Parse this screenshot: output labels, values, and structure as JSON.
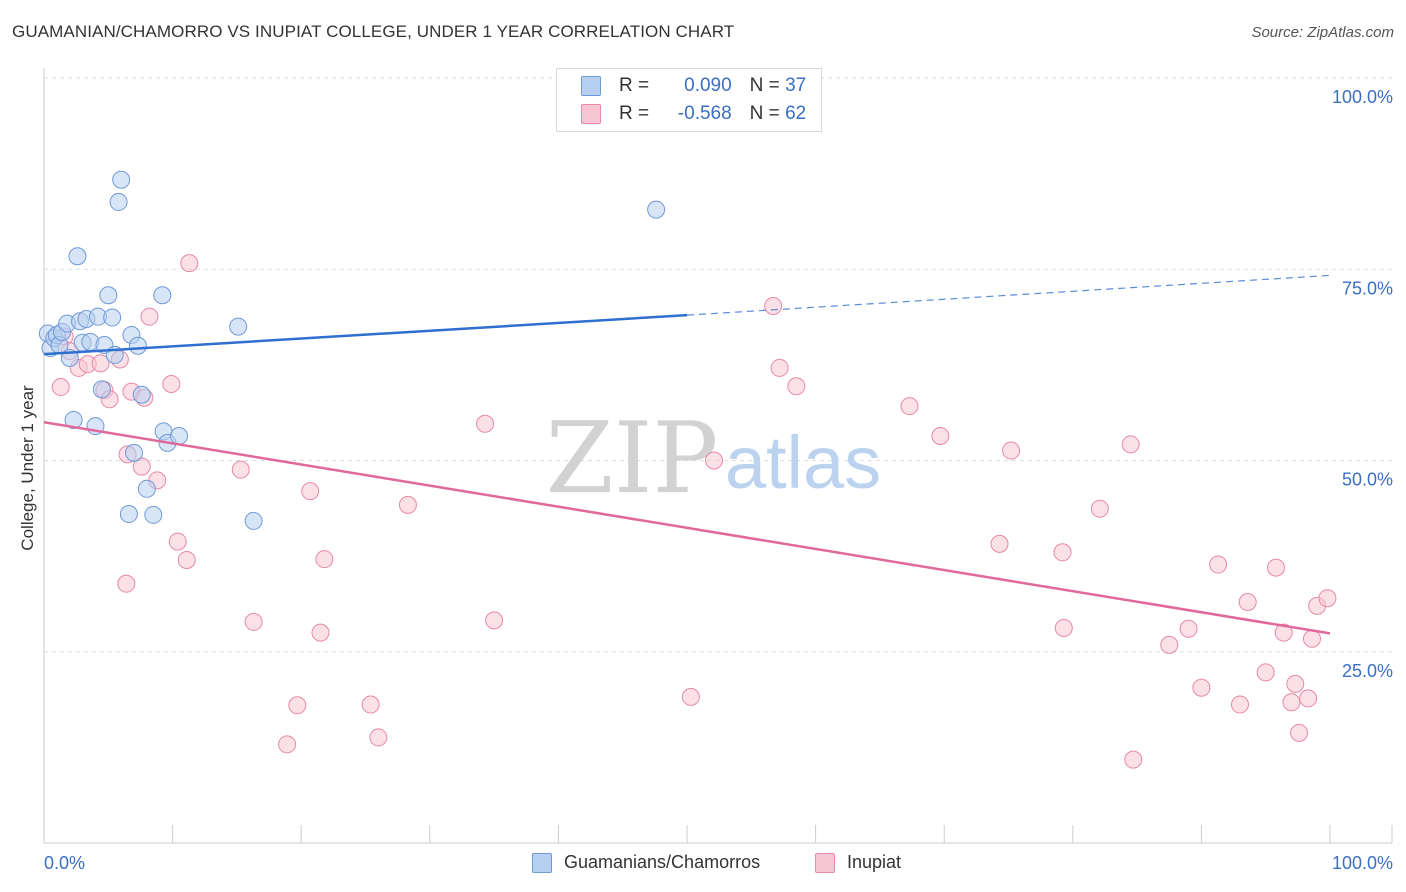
{
  "header": {
    "title": "GUAMANIAN/CHAMORRO VS INUPIAT COLLEGE, UNDER 1 YEAR CORRELATION CHART",
    "source": "Source: ZipAtlas.com"
  },
  "watermark": {
    "zip": "ZIP",
    "atlas": "atlas"
  },
  "legend": {
    "rows": [
      {
        "r_label": "R =",
        "r_value": "0.090",
        "n_label": "N =",
        "n_value": "37"
      },
      {
        "r_label": "R =",
        "r_value": "-0.568",
        "n_label": "N =",
        "n_value": "62"
      }
    ]
  },
  "colors": {
    "blue_fill": "#b7d0f1",
    "blue_stroke": "#6f9ad8",
    "blue_line": "#2f6fcf",
    "pink_fill": "#f7c6d4",
    "pink_stroke": "#e68aa6",
    "pink_line": "#e0689a",
    "grid": "#dddddd",
    "tick_label": "#3a6fc4"
  },
  "chart_data": {
    "type": "scatter",
    "title": "GUAMANIAN/CHAMORRO VS INUPIAT COLLEGE, UNDER 1 YEAR CORRELATION CHART",
    "xlabel": "",
    "ylabel": "College, Under 1 year",
    "xlim": [
      0,
      100
    ],
    "ylim": [
      0,
      100
    ],
    "x_ticks": [
      "0.0%",
      "100.0%"
    ],
    "y_ticks": [
      {
        "value": 25,
        "label": "25.0%"
      },
      {
        "value": 50,
        "label": "50.0%"
      },
      {
        "value": 75,
        "label": "75.0%"
      },
      {
        "value": 100,
        "label": "100.0%"
      }
    ],
    "series": [
      {
        "name": "Guamanians/Chamorros",
        "color": "#6f9ad8",
        "r": 0.09,
        "n": 37,
        "trend": {
          "x0": 0,
          "y0": 63.9,
          "x1": 50,
          "y1": 69.0,
          "dashed_to_x": 100,
          "dashed_to_y": 74.2
        },
        "points": [
          [
            0.3,
            66.6
          ],
          [
            0.5,
            64.7
          ],
          [
            0.8,
            66.0
          ],
          [
            1.0,
            66.4
          ],
          [
            1.2,
            65.1
          ],
          [
            1.4,
            66.8
          ],
          [
            1.8,
            67.9
          ],
          [
            2.0,
            63.4
          ],
          [
            2.3,
            55.3
          ],
          [
            2.6,
            76.7
          ],
          [
            2.8,
            68.2
          ],
          [
            3.0,
            65.4
          ],
          [
            3.3,
            68.5
          ],
          [
            3.6,
            65.5
          ],
          [
            4.0,
            54.5
          ],
          [
            4.2,
            68.8
          ],
          [
            4.5,
            59.3
          ],
          [
            4.7,
            65.1
          ],
          [
            5.0,
            71.6
          ],
          [
            5.3,
            68.7
          ],
          [
            5.5,
            63.8
          ],
          [
            5.8,
            83.8
          ],
          [
            6.0,
            86.7
          ],
          [
            6.8,
            66.4
          ],
          [
            7.0,
            51.0
          ],
          [
            7.3,
            65.0
          ],
          [
            7.6,
            58.6
          ],
          [
            8.0,
            46.3
          ],
          [
            8.5,
            42.9
          ],
          [
            9.3,
            53.8
          ],
          [
            9.6,
            52.3
          ],
          [
            10.5,
            53.2
          ],
          [
            9.2,
            71.6
          ],
          [
            15.1,
            67.5
          ],
          [
            16.3,
            42.1
          ],
          [
            6.6,
            43.0
          ],
          [
            47.6,
            82.8
          ]
        ]
      },
      {
        "name": "Inupiat",
        "color": "#e68aa6",
        "r": -0.568,
        "n": 62,
        "trend": {
          "x0": 0,
          "y0": 55.0,
          "x1": 100,
          "y1": 27.4
        },
        "points": [
          [
            1.3,
            59.6
          ],
          [
            1.6,
            66.2
          ],
          [
            2.0,
            64.3
          ],
          [
            2.7,
            62.1
          ],
          [
            3.4,
            62.6
          ],
          [
            4.4,
            62.7
          ],
          [
            4.7,
            59.2
          ],
          [
            5.1,
            58.0
          ],
          [
            5.9,
            63.2
          ],
          [
            6.4,
            33.9
          ],
          [
            6.5,
            50.8
          ],
          [
            6.8,
            59.0
          ],
          [
            7.6,
            49.2
          ],
          [
            7.8,
            58.2
          ],
          [
            8.2,
            68.8
          ],
          [
            8.8,
            47.4
          ],
          [
            9.9,
            60.0
          ],
          [
            10.4,
            39.4
          ],
          [
            11.1,
            37.0
          ],
          [
            11.3,
            75.8
          ],
          [
            15.3,
            48.8
          ],
          [
            16.3,
            28.9
          ],
          [
            18.9,
            12.9
          ],
          [
            19.7,
            18.0
          ],
          [
            20.7,
            46.0
          ],
          [
            21.5,
            27.5
          ],
          [
            21.8,
            37.1
          ],
          [
            25.4,
            18.1
          ],
          [
            26.0,
            13.8
          ],
          [
            28.3,
            44.2
          ],
          [
            34.3,
            54.8
          ],
          [
            35.0,
            29.1
          ],
          [
            50.3,
            19.1
          ],
          [
            52.1,
            50.0
          ],
          [
            56.7,
            70.2
          ],
          [
            57.2,
            62.1
          ],
          [
            58.5,
            59.7
          ],
          [
            67.3,
            57.1
          ],
          [
            69.7,
            53.2
          ],
          [
            74.3,
            39.1
          ],
          [
            75.2,
            51.3
          ],
          [
            79.2,
            38.0
          ],
          [
            79.3,
            28.1
          ],
          [
            82.1,
            43.7
          ],
          [
            84.5,
            52.1
          ],
          [
            84.7,
            10.9
          ],
          [
            87.5,
            25.9
          ],
          [
            89.0,
            28.0
          ],
          [
            90.0,
            20.3
          ],
          [
            91.3,
            36.4
          ],
          [
            93.0,
            18.1
          ],
          [
            93.6,
            31.5
          ],
          [
            95.0,
            22.3
          ],
          [
            95.8,
            36.0
          ],
          [
            96.4,
            27.5
          ],
          [
            97.0,
            18.4
          ],
          [
            97.3,
            20.8
          ],
          [
            97.6,
            14.4
          ],
          [
            98.3,
            18.9
          ],
          [
            99.0,
            31.0
          ],
          [
            99.8,
            32.0
          ],
          [
            98.6,
            26.7
          ]
        ]
      }
    ]
  },
  "bottom_legend": [
    {
      "label": "Guamanians/Chamorros"
    },
    {
      "label": "Inupiat"
    }
  ]
}
